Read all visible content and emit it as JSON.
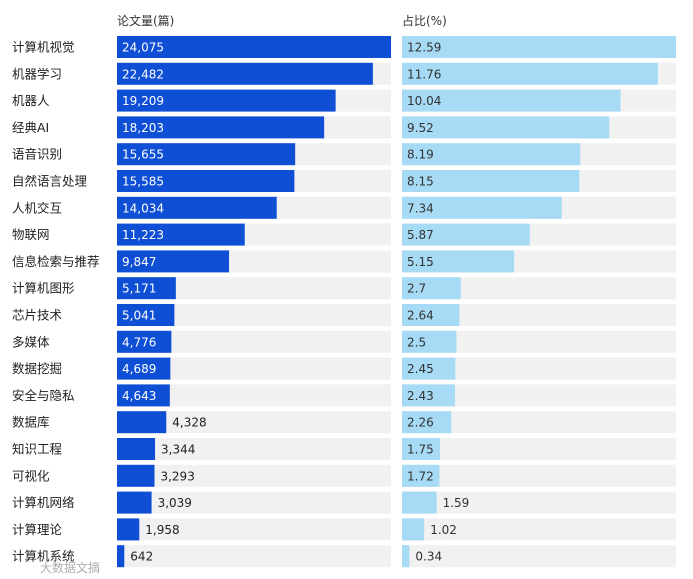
{
  "chart_data": {
    "type": "bar",
    "orientation": "horizontal",
    "headers": {
      "count": "论文量(篇)",
      "share": "占比(%)"
    },
    "categories": [
      "计算机视觉",
      "机器学习",
      "机器人",
      "经典AI",
      "语音识别",
      "自然语言处理",
      "人机交互",
      "物联网",
      "信息检索与推荐",
      "计算机图形",
      "芯片技术",
      "多媒体",
      "数据挖掘",
      "安全与隐私",
      "数据库",
      "知识工程",
      "可视化",
      "计算机网络",
      "计算理论",
      "计算机系统"
    ],
    "series": [
      {
        "name": "论文量(篇)",
        "values": [
          24075,
          22482,
          19209,
          18203,
          15655,
          15585,
          14034,
          11223,
          9847,
          5171,
          5041,
          4776,
          4689,
          4643,
          4328,
          3344,
          3293,
          3039,
          1958,
          642
        ],
        "labels": [
          "24,075",
          "22,482",
          "19,209",
          "18,203",
          "15,655",
          "15,585",
          "14,034",
          "11,223",
          "9,847",
          "5,171",
          "5,041",
          "4,776",
          "4,689",
          "4,643",
          "4,328",
          "3,344",
          "3,293",
          "3,039",
          "1,958",
          "642"
        ],
        "color": "#0f4fd6",
        "xlim": [
          0,
          24075
        ]
      },
      {
        "name": "占比(%)",
        "values": [
          12.59,
          11.76,
          10.04,
          9.52,
          8.19,
          8.15,
          7.34,
          5.87,
          5.15,
          2.7,
          2.64,
          2.5,
          2.45,
          2.43,
          2.26,
          1.75,
          1.72,
          1.59,
          1.02,
          0.34
        ],
        "labels": [
          "12.59",
          "11.76",
          "10.04",
          "9.52",
          "8.19",
          "8.15",
          "7.34",
          "5.87",
          "5.15",
          "2.7",
          "2.64",
          "2.5",
          "2.45",
          "2.43",
          "2.26",
          "1.75",
          "1.72",
          "1.59",
          "1.02",
          "0.34"
        ],
        "color": "#a6daf5",
        "xlim": [
          0,
          12.59
        ]
      }
    ],
    "background_track_color": "#f1f1f1",
    "grid": false,
    "legend": "none"
  },
  "watermark": "大数据文摘"
}
